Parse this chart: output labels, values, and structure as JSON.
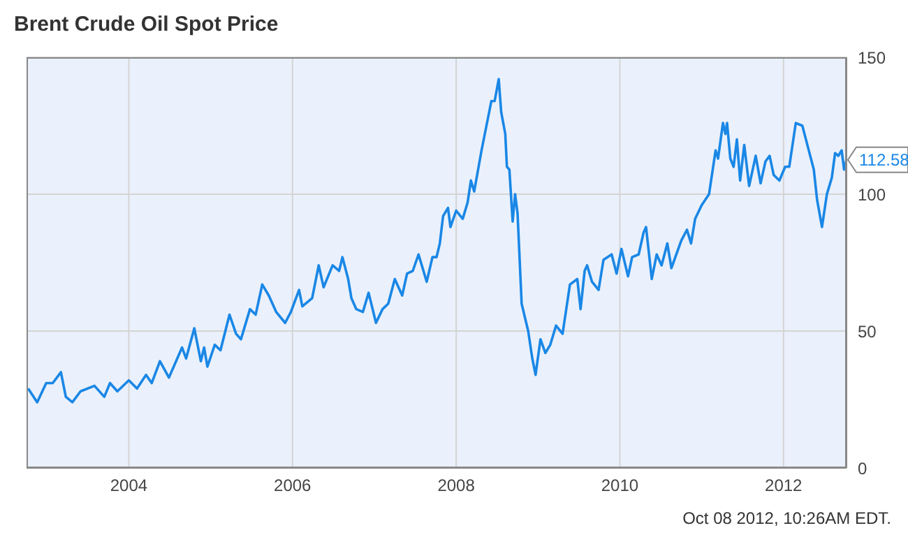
{
  "chart_data": {
    "type": "line",
    "title": "Brent Crude Oil Spot Price",
    "xlim": [
      2002.75,
      2012.77
    ],
    "xticks": [
      2004,
      2006,
      2008,
      2010,
      2012
    ],
    "ylim": [
      0,
      150
    ],
    "yticks": [
      0,
      50,
      100,
      150
    ],
    "grid": true,
    "annotations": [
      {
        "text": "112.58",
        "x": 2012.77,
        "y": 112.58
      },
      "Oct 08 2012, 10:26AM EDT."
    ],
    "series": [
      {
        "color": "#1a87e6",
        "x": [
          2002.77,
          2002.88,
          2002.99,
          2003.07,
          2003.17,
          2003.23,
          2003.31,
          2003.41,
          2003.58,
          2003.7,
          2003.77,
          2003.86,
          2004.0,
          2004.1,
          2004.21,
          2004.28,
          2004.38,
          2004.49,
          2004.65,
          2004.7,
          2004.8,
          2004.88,
          2004.92,
          2004.96,
          2005.05,
          2005.12,
          2005.23,
          2005.31,
          2005.37,
          2005.48,
          2005.55,
          2005.63,
          2005.71,
          2005.8,
          2005.91,
          2005.98,
          2006.08,
          2006.12,
          2006.24,
          2006.32,
          2006.38,
          2006.49,
          2006.57,
          2006.61,
          2006.68,
          2006.72,
          2006.78,
          2006.86,
          2006.93,
          2007.02,
          2007.1,
          2007.17,
          2007.25,
          2007.34,
          2007.4,
          2007.47,
          2007.54,
          2007.64,
          2007.71,
          2007.76,
          2007.8,
          2007.84,
          2007.9,
          2007.93,
          2008.0,
          2008.08,
          2008.14,
          2008.18,
          2008.22,
          2008.31,
          2008.35,
          2008.43,
          2008.47,
          2008.52,
          2008.55,
          2008.6,
          2008.62,
          2008.65,
          2008.69,
          2008.72,
          2008.75,
          2008.8,
          2008.88,
          2008.93,
          2008.97,
          2009.03,
          2009.09,
          2009.15,
          2009.22,
          2009.3,
          2009.39,
          2009.48,
          2009.52,
          2009.57,
          2009.6,
          2009.66,
          2009.74,
          2009.8,
          2009.9,
          2009.96,
          2010.02,
          2010.1,
          2010.15,
          2010.23,
          2010.29,
          2010.32,
          2010.39,
          2010.45,
          2010.51,
          2010.58,
          2010.63,
          2010.75,
          2010.82,
          2010.87,
          2010.92,
          2011.0,
          2011.09,
          2011.17,
          2011.2,
          2011.26,
          2011.29,
          2011.31,
          2011.35,
          2011.39,
          2011.43,
          2011.47,
          2011.52,
          2011.58,
          2011.66,
          2011.72,
          2011.78,
          2011.83,
          2011.88,
          2011.95,
          2012.02,
          2012.07,
          2012.15,
          2012.23,
          2012.3,
          2012.37,
          2012.41,
          2012.47,
          2012.53,
          2012.59,
          2012.63,
          2012.67,
          2012.71,
          2012.74,
          2012.77
        ],
        "values": [
          29,
          24,
          31,
          31,
          35,
          26,
          24,
          28,
          30,
          26,
          31,
          28,
          32,
          29,
          34,
          31,
          39,
          33,
          44,
          40,
          51,
          39,
          44,
          37,
          45,
          43,
          56,
          49,
          47,
          58,
          56,
          67,
          63,
          57,
          53,
          57,
          65,
          59,
          62,
          74,
          66,
          74,
          72,
          77,
          69,
          62,
          58,
          57,
          64,
          53,
          58,
          60,
          69,
          63,
          71,
          72,
          78,
          68,
          77,
          77,
          82,
          92,
          95,
          88,
          94,
          91,
          97,
          105,
          101,
          116,
          122,
          134,
          134,
          142,
          130,
          122,
          110,
          109,
          90,
          100,
          93,
          60,
          50,
          40,
          34,
          47,
          42,
          45,
          52,
          49,
          67,
          69,
          58,
          72,
          74,
          68,
          65,
          76,
          78,
          71,
          80,
          70,
          77,
          78,
          86,
          88,
          69,
          78,
          74,
          82,
          73,
          83,
          87,
          82,
          91,
          96,
          100,
          116,
          113,
          126,
          122,
          126,
          113,
          110,
          120,
          105,
          118,
          103,
          114,
          104,
          112,
          114,
          107,
          105,
          110,
          110,
          126,
          125,
          117,
          109,
          98,
          88,
          100,
          106,
          115,
          114,
          116,
          109,
          112.58
        ]
      }
    ]
  }
}
